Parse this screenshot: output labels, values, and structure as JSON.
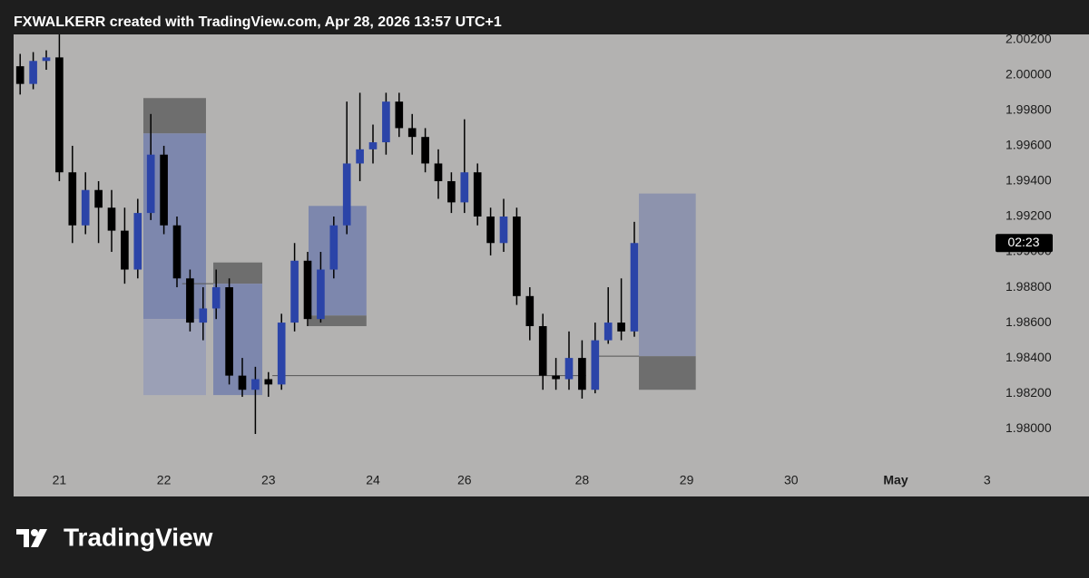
{
  "chart_data": {
    "type": "candlestick",
    "title": "FXWALKERR created with TradingView.com, Apr 28, 2026 13:57 UTC+1",
    "brand": "TradingView",
    "countdown": "02:23",
    "categories": [
      null,
      null,
      null,
      "21",
      null,
      null,
      null,
      null,
      null,
      null,
      null,
      "22",
      null,
      null,
      null,
      null,
      null,
      null,
      null,
      "23",
      null,
      null,
      null,
      null,
      null,
      null,
      null,
      "24",
      null,
      null,
      null,
      null,
      null,
      null,
      "26",
      null,
      null,
      null,
      null,
      null,
      null,
      null,
      null,
      "28",
      null,
      null,
      null,
      null,
      null,
      null,
      null,
      "29",
      null,
      null,
      null,
      null,
      null,
      null,
      null,
      "30",
      null,
      null,
      null,
      null,
      null,
      null,
      null,
      "May",
      null,
      null,
      null,
      null,
      null,
      null,
      "3"
    ],
    "open": [
      2.0005,
      1.9995,
      2.0008,
      2.001,
      1.9945,
      1.9915,
      1.9935,
      1.9925,
      1.9912,
      1.989,
      1.9922,
      1.9955,
      1.9915,
      1.9885,
      1.986,
      1.9868,
      1.988,
      1.983,
      1.9822,
      1.9828,
      1.9825,
      1.986,
      1.9895,
      1.9862,
      1.989,
      1.9915,
      1.995,
      1.9958,
      1.9962,
      1.9985,
      1.997,
      1.9965,
      1.995,
      1.994,
      1.9928,
      1.9945,
      1.992,
      1.9905,
      1.992,
      1.9875,
      1.9858,
      1.983,
      1.9828,
      1.984,
      1.9822,
      1.985,
      1.986,
      1.9855,
      null,
      null,
      null,
      null,
      null,
      null,
      null,
      null,
      null,
      null,
      null,
      null,
      null,
      null,
      null,
      null,
      null,
      null,
      null,
      null,
      null,
      null,
      null,
      null,
      null,
      null,
      null
    ],
    "high": [
      2.0012,
      2.0013,
      2.0014,
      2.0023,
      1.996,
      1.9945,
      1.994,
      1.9935,
      1.9925,
      1.993,
      1.9978,
      1.996,
      1.992,
      1.989,
      1.988,
      1.989,
      1.9885,
      1.984,
      1.9835,
      1.9832,
      1.9865,
      1.9905,
      1.99,
      1.99,
      1.992,
      1.9985,
      1.999,
      1.9972,
      1.999,
      1.999,
      1.9978,
      1.997,
      1.9958,
      1.9945,
      1.9975,
      1.995,
      1.9925,
      1.993,
      1.9925,
      1.988,
      1.9865,
      1.984,
      1.9855,
      1.985,
      1.986,
      1.988,
      1.9885,
      1.9917,
      null,
      null,
      null,
      null,
      null,
      null,
      null,
      null,
      null,
      null,
      null,
      null,
      null,
      null,
      null,
      null,
      null,
      null,
      null,
      null,
      null,
      null,
      null,
      null,
      null,
      null,
      null
    ],
    "low": [
      1.9989,
      1.9992,
      2.0003,
      1.994,
      1.9905,
      1.991,
      1.9905,
      1.99,
      1.9882,
      1.9885,
      1.9918,
      1.991,
      1.988,
      1.9855,
      1.985,
      1.9862,
      1.9825,
      1.9818,
      1.9797,
      1.9818,
      1.9822,
      1.9855,
      1.9858,
      1.986,
      1.9885,
      1.991,
      1.994,
      1.995,
      1.9955,
      1.9965,
      1.9955,
      1.9945,
      1.993,
      1.9922,
      1.9922,
      1.9915,
      1.9898,
      1.99,
      1.987,
      1.985,
      1.9822,
      1.9822,
      1.9822,
      1.9817,
      1.982,
      1.9848,
      1.985,
      1.9852,
      null,
      null,
      null,
      null,
      null,
      null,
      null,
      null,
      null,
      null,
      null,
      null,
      null,
      null,
      null,
      null,
      null,
      null,
      null,
      null,
      null,
      null,
      null,
      null,
      null,
      null,
      null
    ],
    "close": [
      1.9995,
      2.0008,
      2.001,
      1.9945,
      1.9915,
      1.9935,
      1.9925,
      1.9912,
      1.989,
      1.9922,
      1.9955,
      1.9915,
      1.9885,
      1.986,
      1.9868,
      1.988,
      1.983,
      1.9822,
      1.9828,
      1.9825,
      1.986,
      1.9895,
      1.9862,
      1.989,
      1.9915,
      1.995,
      1.9958,
      1.9962,
      1.9985,
      1.997,
      1.9965,
      1.995,
      1.994,
      1.9928,
      1.9945,
      1.992,
      1.9905,
      1.992,
      1.9875,
      1.9858,
      1.983,
      1.9828,
      1.984,
      1.9822,
      1.985,
      1.986,
      1.9855,
      1.9905,
      null,
      null,
      null,
      null,
      null,
      null,
      null,
      null,
      null,
      null,
      null,
      null,
      null,
      null,
      null,
      null,
      null,
      null,
      null,
      null,
      null,
      null,
      null,
      null,
      null,
      null,
      null
    ],
    "up_color": "#2b44a8",
    "down_color": "#000000",
    "ylim": [
      1.9776,
      2.0023
    ],
    "yticks": [
      {
        "value": 2.002,
        "label": "2.00200"
      },
      {
        "value": 2.0,
        "label": "2.00000"
      },
      {
        "value": 1.998,
        "label": "1.99800"
      },
      {
        "value": 1.996,
        "label": "1.99600"
      },
      {
        "value": 1.994,
        "label": "1.99400"
      },
      {
        "value": 1.992,
        "label": "1.99200"
      },
      {
        "value": 1.99,
        "label": "1.99000"
      },
      {
        "value": 1.988,
        "label": "1.98800"
      },
      {
        "value": 1.986,
        "label": "1.98600"
      },
      {
        "value": 1.984,
        "label": "1.98400"
      },
      {
        "value": 1.982,
        "label": "1.98200"
      },
      {
        "value": 1.98,
        "label": "1.98000"
      }
    ],
    "grid": false,
    "zones": [
      {
        "from": 9.43,
        "to": 14.22,
        "top": 1.9987,
        "bottom": 1.9967,
        "color": "#6e6e6e"
      },
      {
        "from": 9.43,
        "to": 14.22,
        "top": 1.9967,
        "bottom": 1.9862,
        "color": "#7d87ad"
      },
      {
        "from": 9.43,
        "to": 14.22,
        "top": 1.9862,
        "bottom": 1.9819,
        "color": "#9ba0b6"
      },
      {
        "from": 14.78,
        "to": 18.53,
        "top": 1.9894,
        "bottom": 1.9882,
        "color": "#6e6e6e"
      },
      {
        "from": 14.78,
        "to": 18.53,
        "top": 1.9882,
        "bottom": 1.9819,
        "color": "#7d87ad"
      },
      {
        "from": 22.07,
        "to": 26.5,
        "top": 1.9926,
        "bottom": 1.9864,
        "color": "#7d87ad"
      },
      {
        "from": 22.07,
        "to": 26.5,
        "top": 1.9864,
        "bottom": 1.9858,
        "color": "#6e6e6e"
      },
      {
        "from": 47.35,
        "to": 51.7,
        "top": 1.9933,
        "bottom": 1.9841,
        "color": "#8d93ad"
      },
      {
        "from": 47.35,
        "to": 51.7,
        "top": 1.9841,
        "bottom": 1.9822,
        "color": "#6e6e6e"
      }
    ],
    "levels": [
      {
        "from": 12.4,
        "to": 14.78,
        "value": 1.9882
      },
      {
        "from": 19.3,
        "to": 43.3,
        "value": 1.983
      },
      {
        "from": 44.0,
        "to": 47.35,
        "value": 1.9841
      }
    ]
  }
}
